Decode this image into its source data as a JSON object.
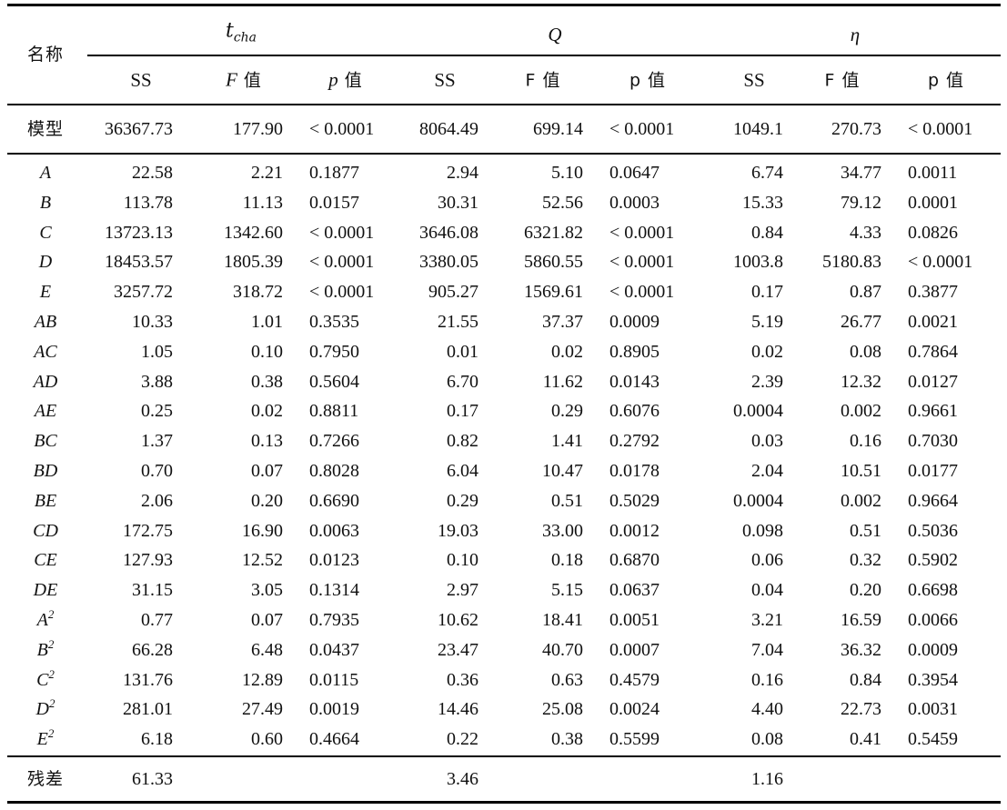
{
  "header": {
    "name_label": "名称",
    "groups": [
      {
        "symbol": "t",
        "subscript": "cha"
      },
      {
        "symbol": "Q",
        "subscript": ""
      },
      {
        "symbol": "η",
        "subscript": ""
      }
    ],
    "subheaders": [
      {
        "text": "SS",
        "italic_prefix": ""
      },
      {
        "text": " 值",
        "italic_prefix": "F"
      },
      {
        "text": " 值",
        "italic_prefix": "p"
      },
      {
        "text": "SS",
        "italic_prefix": ""
      },
      {
        "text": "F 值",
        "italic_prefix": ""
      },
      {
        "text": "p 值",
        "italic_prefix": ""
      },
      {
        "text": "SS",
        "italic_prefix": ""
      },
      {
        "text": "F 值",
        "italic_prefix": ""
      },
      {
        "text": "p 值",
        "italic_prefix": ""
      }
    ]
  },
  "model_row": {
    "label": "模型",
    "values": [
      "36367.73",
      "177.90",
      "< 0.0001",
      "8064.49",
      "699.14",
      "< 0.0001",
      "1049.1",
      "270.73",
      "< 0.0001"
    ]
  },
  "rows": [
    {
      "term": "A",
      "sup": "",
      "values": [
        "22.58",
        "2.21",
        "0.1877",
        "2.94",
        "5.10",
        "0.0647",
        "6.74",
        "34.77",
        "0.0011"
      ]
    },
    {
      "term": "B",
      "sup": "",
      "values": [
        "113.78",
        "11.13",
        "0.0157",
        "30.31",
        "52.56",
        "0.0003",
        "15.33",
        "79.12",
        "0.0001"
      ]
    },
    {
      "term": "C",
      "sup": "",
      "values": [
        "13723.13",
        "1342.60",
        "< 0.0001",
        "3646.08",
        "6321.82",
        "< 0.0001",
        "0.84",
        "4.33",
        "0.0826"
      ]
    },
    {
      "term": "D",
      "sup": "",
      "values": [
        "18453.57",
        "1805.39",
        "< 0.0001",
        "3380.05",
        "5860.55",
        "< 0.0001",
        "1003.8",
        "5180.83",
        "< 0.0001"
      ]
    },
    {
      "term": "E",
      "sup": "",
      "values": [
        "3257.72",
        "318.72",
        "< 0.0001",
        "905.27",
        "1569.61",
        "< 0.0001",
        "0.17",
        "0.87",
        "0.3877"
      ]
    },
    {
      "term": "AB",
      "sup": "",
      "values": [
        "10.33",
        "1.01",
        "0.3535",
        "21.55",
        "37.37",
        "0.0009",
        "5.19",
        "26.77",
        "0.0021"
      ]
    },
    {
      "term": "AC",
      "sup": "",
      "values": [
        "1.05",
        "0.10",
        "0.7950",
        "0.01",
        "0.02",
        "0.8905",
        "0.02",
        "0.08",
        "0.7864"
      ]
    },
    {
      "term": "AD",
      "sup": "",
      "values": [
        "3.88",
        "0.38",
        "0.5604",
        "6.70",
        "11.62",
        "0.0143",
        "2.39",
        "12.32",
        "0.0127"
      ]
    },
    {
      "term": "AE",
      "sup": "",
      "values": [
        "0.25",
        "0.02",
        "0.8811",
        "0.17",
        "0.29",
        "0.6076",
        "0.0004",
        "0.002",
        "0.9661"
      ]
    },
    {
      "term": "BC",
      "sup": "",
      "values": [
        "1.37",
        "0.13",
        "0.7266",
        "0.82",
        "1.41",
        "0.2792",
        "0.03",
        "0.16",
        "0.7030"
      ]
    },
    {
      "term": "BD",
      "sup": "",
      "values": [
        "0.70",
        "0.07",
        "0.8028",
        "6.04",
        "10.47",
        "0.0178",
        "2.04",
        "10.51",
        "0.0177"
      ]
    },
    {
      "term": "BE",
      "sup": "",
      "values": [
        "2.06",
        "0.20",
        "0.6690",
        "0.29",
        "0.51",
        "0.5029",
        "0.0004",
        "0.002",
        "0.9664"
      ]
    },
    {
      "term": "CD",
      "sup": "",
      "values": [
        "172.75",
        "16.90",
        "0.0063",
        "19.03",
        "33.00",
        "0.0012",
        "0.098",
        "0.51",
        "0.5036"
      ]
    },
    {
      "term": "CE",
      "sup": "",
      "values": [
        "127.93",
        "12.52",
        "0.0123",
        "0.10",
        "0.18",
        "0.6870",
        "0.06",
        "0.32",
        "0.5902"
      ]
    },
    {
      "term": "DE",
      "sup": "",
      "values": [
        "31.15",
        "3.05",
        "0.1314",
        "2.97",
        "5.15",
        "0.0637",
        "0.04",
        "0.20",
        "0.6698"
      ]
    },
    {
      "term": "A",
      "sup": "2",
      "values": [
        "0.77",
        "0.07",
        "0.7935",
        "10.62",
        "18.41",
        "0.0051",
        "3.21",
        "16.59",
        "0.0066"
      ]
    },
    {
      "term": "B",
      "sup": "2",
      "values": [
        "66.28",
        "6.48",
        "0.0437",
        "23.47",
        "40.70",
        "0.0007",
        "7.04",
        "36.32",
        "0.0009"
      ]
    },
    {
      "term": "C",
      "sup": "2",
      "values": [
        "131.76",
        "12.89",
        "0.0115",
        "0.36",
        "0.63",
        "0.4579",
        "0.16",
        "0.84",
        "0.3954"
      ]
    },
    {
      "term": "D",
      "sup": "2",
      "values": [
        "281.01",
        "27.49",
        "0.0019",
        "14.46",
        "25.08",
        "0.0024",
        "4.40",
        "22.73",
        "0.0031"
      ]
    },
    {
      "term": "E",
      "sup": "2",
      "values": [
        "6.18",
        "0.60",
        "0.4664",
        "0.22",
        "0.38",
        "0.5599",
        "0.08",
        "0.41",
        "0.5459"
      ]
    }
  ],
  "residual_row": {
    "label": "残差",
    "values": [
      "61.33",
      "",
      "",
      "3.46",
      "",
      "",
      "1.16",
      "",
      ""
    ]
  }
}
